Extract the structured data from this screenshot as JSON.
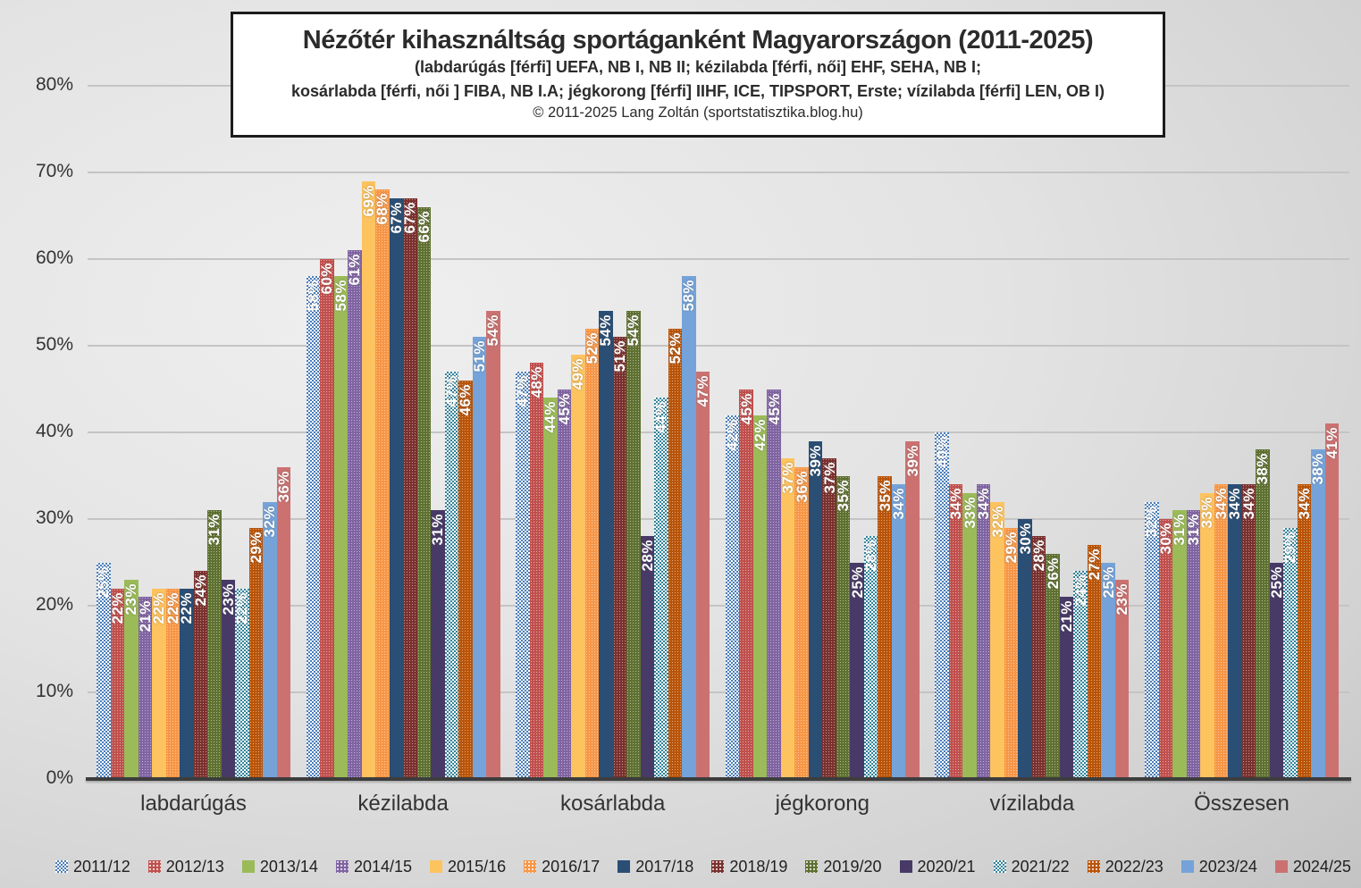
{
  "chart_data": {
    "type": "bar",
    "title": "Nézőtér kihasználtság sportáganként Magyarországon (2011-2025)",
    "subtitle1": "(labdarúgás [férfi] UEFA, NB I, NB II; kézilabda [férfi, női] EHF, SEHA, NB I;",
    "subtitle2": "kosárlabda [férfi, női ] FIBA, NB I.A; jégkorong [férfi] IIHF, ICE, TIPSPORT, Erste; vízilabda [férfi] LEN, OB I)",
    "copyright": "© 2011-2025 Lang Zoltán (sportstatisztika.blog.hu)",
    "unit": "%",
    "ylim": [
      0,
      80
    ],
    "y_tick_step": 10,
    "y_ticks": [
      "0%",
      "10%",
      "20%",
      "30%",
      "40%",
      "50%",
      "60%",
      "70%",
      "80%"
    ],
    "grid": true,
    "legend_position": "bottom",
    "value_labels": "rotated-90-inside-top",
    "categories": [
      "labdarúgás",
      "kézilabda",
      "kosárlabda",
      "jégkorong",
      "vízilabda",
      "Összesen"
    ],
    "series": [
      {
        "name": "2011/12",
        "color": "#4a7ebb",
        "fill": "checker",
        "values": [
          25,
          58,
          47,
          42,
          40,
          32
        ]
      },
      {
        "name": "2012/13",
        "color": "#c0504d",
        "fill": "dots",
        "values": [
          22,
          60,
          48,
          45,
          34,
          30
        ]
      },
      {
        "name": "2013/14",
        "color": "#9bbb59",
        "fill": "solid",
        "values": [
          23,
          58,
          44,
          42,
          33,
          31
        ]
      },
      {
        "name": "2014/15",
        "color": "#8064a2",
        "fill": "dots",
        "values": [
          21,
          61,
          45,
          45,
          34,
          31
        ]
      },
      {
        "name": "2015/16",
        "color": "#fdc35f",
        "fill": "solid",
        "values": [
          22,
          69,
          49,
          37,
          32,
          33
        ]
      },
      {
        "name": "2016/17",
        "color": "#f79646",
        "fill": "dots",
        "values": [
          22,
          68,
          52,
          36,
          29,
          34
        ]
      },
      {
        "name": "2017/18",
        "color": "#2a4e74",
        "fill": "solid",
        "values": [
          22,
          67,
          54,
          39,
          30,
          34
        ]
      },
      {
        "name": "2018/19",
        "color": "#7b312e",
        "fill": "dots",
        "values": [
          24,
          67,
          51,
          37,
          28,
          34
        ]
      },
      {
        "name": "2019/20",
        "color": "#5f7131",
        "fill": "dots",
        "values": [
          31,
          66,
          54,
          35,
          26,
          38
        ]
      },
      {
        "name": "2020/21",
        "color": "#483a66",
        "fill": "solid",
        "values": [
          23,
          31,
          28,
          25,
          21,
          25
        ]
      },
      {
        "name": "2021/22",
        "color": "#31849b",
        "fill": "checker",
        "values": [
          22,
          47,
          44,
          28,
          24,
          29
        ]
      },
      {
        "name": "2022/23",
        "color": "#b95408",
        "fill": "dots",
        "values": [
          29,
          46,
          52,
          35,
          27,
          34
        ]
      },
      {
        "name": "2023/24",
        "color": "#75a3d9",
        "fill": "solid",
        "values": [
          32,
          51,
          58,
          34,
          25,
          38
        ]
      },
      {
        "name": "2024/25",
        "color": "#cb7271",
        "fill": "solid",
        "values": [
          36,
          54,
          47,
          39,
          23,
          41
        ]
      }
    ]
  }
}
